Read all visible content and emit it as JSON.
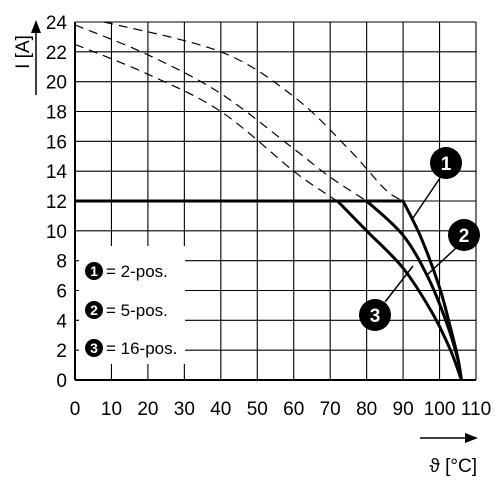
{
  "chart_data": {
    "type": "line",
    "xlabel": "ϑ [°C]",
    "ylabel": "I [A]",
    "xlim": [
      0,
      110
    ],
    "ylim": [
      0,
      24
    ],
    "x_ticks": [
      "0",
      "10",
      "20",
      "30",
      "40",
      "50",
      "60",
      "70",
      "80",
      "90",
      "100",
      "110"
    ],
    "y_ticks": [
      "0",
      "2",
      "4",
      "6",
      "8",
      "10",
      "12",
      "14",
      "16",
      "18",
      "20",
      "22",
      "24"
    ],
    "grid": true,
    "legend": {
      "placement": "bottom-left",
      "entries": [
        {
          "marker": "1",
          "label": "= 2-pos."
        },
        {
          "marker": "2",
          "label": "= 5-pos."
        },
        {
          "marker": "3",
          "label": "= 16-pos."
        }
      ]
    },
    "series": [
      {
        "marker": "1",
        "x": [
          0,
          90,
          95,
          100,
          103,
          105,
          106
        ],
        "y": [
          12,
          12,
          9.5,
          6.2,
          3.5,
          1.5,
          0
        ],
        "derating_x": [
          8,
          40,
          60,
          75,
          85,
          90
        ],
        "derating_y": [
          24,
          22,
          19,
          15.5,
          12.8,
          12
        ]
      },
      {
        "marker": "2",
        "x": [
          0,
          80,
          90,
          97,
          102,
          105,
          106
        ],
        "y": [
          12,
          12,
          9.7,
          6.8,
          3.8,
          1.4,
          0
        ],
        "derating_x": [
          0,
          20,
          40,
          60,
          70,
          80
        ],
        "derating_y": [
          23.8,
          21.8,
          19.2,
          15.5,
          13.6,
          12
        ]
      },
      {
        "marker": "3",
        "x": [
          0,
          72,
          80,
          90,
          98,
          103,
          106
        ],
        "y": [
          12,
          12,
          10,
          7.5,
          4.5,
          2,
          0
        ],
        "derating_x": [
          0,
          20,
          40,
          60,
          70,
          72
        ],
        "derating_y": [
          22.5,
          20.5,
          18,
          14,
          12.3,
          12
        ]
      }
    ]
  }
}
